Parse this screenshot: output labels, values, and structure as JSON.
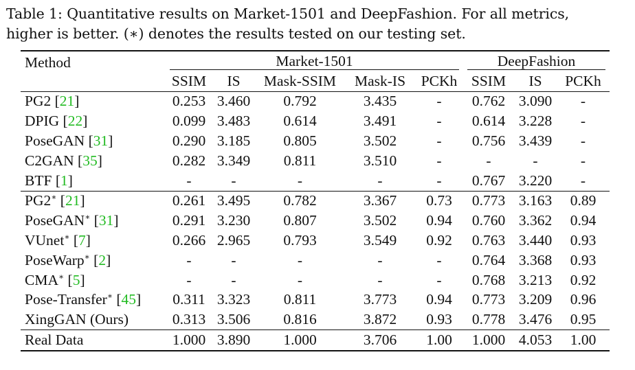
{
  "caption": {
    "line1": "Table 1: Quantitative results on Market-1501 and DeepFashion. For all metrics,",
    "line2": "higher is better. (∗) denotes the results tested on our testing set."
  },
  "header": {
    "method": "Method",
    "market_group": "Market-1501",
    "deepfashion_group": "DeepFashion",
    "market_cols": [
      "SSIM",
      "IS",
      "Mask-SSIM",
      "Mask-IS",
      "PCKh"
    ],
    "deepfashion_cols": [
      "SSIM",
      "IS",
      "PCKh"
    ]
  },
  "rows": [
    {
      "name": "PG2",
      "star": "",
      "ref": "[21]",
      "vals": [
        "0.253",
        "3.460",
        "0.792",
        "3.435",
        "-",
        "0.762",
        "3.090",
        "-"
      ],
      "bold": []
    },
    {
      "name": "DPIG",
      "star": "",
      "ref": "[22]",
      "vals": [
        "0.099",
        "3.483",
        "0.614",
        "3.491",
        "-",
        "0.614",
        "3.228",
        "-"
      ],
      "bold": []
    },
    {
      "name": "PoseGAN",
      "star": "",
      "ref": "[31]",
      "vals": [
        "0.290",
        "3.185",
        "0.805",
        "3.502",
        "-",
        "0.756",
        "3.439",
        "-"
      ],
      "bold": []
    },
    {
      "name": "C2GAN",
      "star": "",
      "ref": "[35]",
      "vals": [
        "0.282",
        "3.349",
        "0.811",
        "3.510",
        "-",
        "-",
        "-",
        "-"
      ],
      "bold": []
    },
    {
      "name": "BTF",
      "star": "",
      "ref": "[1]",
      "vals": [
        "-",
        "-",
        "-",
        "-",
        "-",
        "0.767",
        "3.220",
        "-"
      ],
      "bold": []
    },
    {
      "name": "PG2",
      "star": "∗",
      "ref": "[21]",
      "vals": [
        "0.261",
        "3.495",
        "0.782",
        "3.367",
        "0.73",
        "0.773",
        "3.163",
        "0.89"
      ],
      "bold": []
    },
    {
      "name": "PoseGAN",
      "star": "∗",
      "ref": "[31]",
      "vals": [
        "0.291",
        "3.230",
        "0.807",
        "3.502",
        "0.94",
        "0.760",
        "3.362",
        "0.94"
      ],
      "bold": [
        4
      ]
    },
    {
      "name": "VUnet",
      "star": "∗",
      "ref": "[7]",
      "vals": [
        "0.266",
        "2.965",
        "0.793",
        "3.549",
        "0.92",
        "0.763",
        "3.440",
        "0.93"
      ],
      "bold": []
    },
    {
      "name": "PoseWarp",
      "star": "∗",
      "ref": "[2]",
      "vals": [
        "-",
        "-",
        "-",
        "-",
        "-",
        "0.764",
        "3.368",
        "0.93"
      ],
      "bold": []
    },
    {
      "name": "CMA",
      "star": "∗",
      "ref": "[5]",
      "vals": [
        "-",
        "-",
        "-",
        "-",
        "-",
        "0.768",
        "3.213",
        "0.92"
      ],
      "bold": []
    },
    {
      "name": "Pose-Transfer",
      "star": "∗",
      "ref": "[45]",
      "vals": [
        "0.311",
        "3.323",
        "0.811",
        "3.773",
        "0.94",
        "0.773",
        "3.209",
        "0.96"
      ],
      "bold": [
        4,
        7
      ]
    },
    {
      "name": "XingGAN (Ours)",
      "star": "",
      "ref": "",
      "vals": [
        "0.313",
        "3.506",
        "0.816",
        "3.872",
        "0.93",
        "0.778",
        "3.476",
        "0.95"
      ],
      "bold": [
        0,
        1,
        2,
        3,
        5,
        6
      ]
    },
    {
      "name": "Real Data",
      "star": "",
      "ref": "",
      "vals": [
        "1.000",
        "3.890",
        "1.000",
        "3.706",
        "1.00",
        "1.000",
        "4.053",
        "1.00"
      ],
      "bold": []
    }
  ]
}
